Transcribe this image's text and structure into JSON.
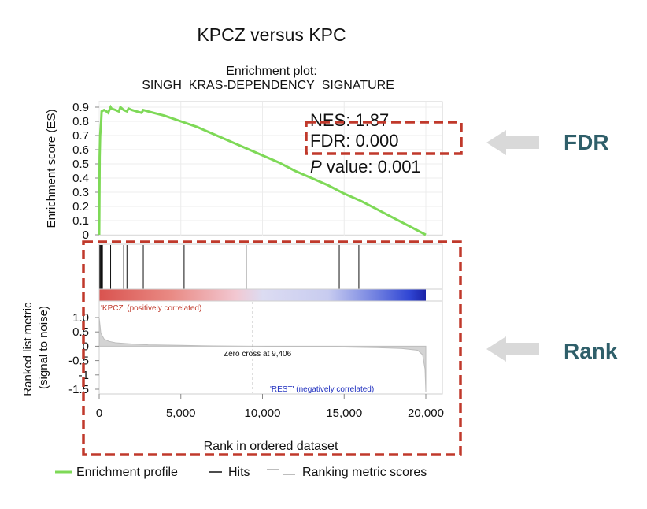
{
  "title": "KPCZ versus KPC",
  "subtitle_line1": "Enrichment plot:",
  "subtitle_line2": "SINGH_KRAS-DEPENDENCY_SIGNATURE_",
  "stats": {
    "nes": "NES: 1.87",
    "fdr": "FDR: 0.000",
    "p_letter": "P",
    "p_rest": " value: 0.001"
  },
  "callouts": {
    "fdr": "FDR",
    "rank": "Rank"
  },
  "legend": {
    "profile": "Enrichment profile",
    "hits": "Hits",
    "ranking": "Ranking metric scores"
  },
  "annotations": {
    "positive": "'KPCZ' (positively correlated)",
    "negative": "'REST' (negatively correlated)",
    "zero_cross": "Zero cross at 9,406"
  },
  "colors": {
    "es_line": "#7ed957",
    "highlight_box": "#c0392b",
    "callout_text": "#2f5f6a",
    "arrow": "#d9d9d9",
    "positive_text": "#c0392b",
    "negative_text": "#1f2fbf"
  },
  "chart_data": {
    "type": "line",
    "title": "Enrichment plot: SINGH_KRAS-DEPENDENCY_SIGNATURE_",
    "xlabel": "Rank in ordered dataset",
    "x_ticks": [
      0,
      5000,
      10000,
      15000,
      20000
    ],
    "x_tick_labels": [
      "0",
      "5,000",
      "10,000",
      "15,000",
      "20,000"
    ],
    "xlim": [
      0,
      20000
    ],
    "es_panel": {
      "ylabel": "Enrichment score (ES)",
      "ylim": [
        0,
        0.9
      ],
      "y_ticks": [
        0,
        0.1,
        0.2,
        0.3,
        0.4,
        0.5,
        0.6,
        0.7,
        0.8,
        0.9
      ],
      "y_tick_labels": [
        "0",
        "0.1",
        "0.2",
        "0.3",
        "0.4",
        "0.5",
        "0.6",
        "0.7",
        "0.8",
        "0.9"
      ],
      "series": [
        {
          "name": "Enrichment profile",
          "x": [
            0,
            30,
            60,
            120,
            150,
            300,
            450,
            550,
            700,
            750,
            1000,
            1200,
            1300,
            1500,
            1700,
            1800,
            2000,
            2300,
            2600,
            2700,
            3000,
            4000,
            5000,
            6000,
            7000,
            8000,
            9000,
            10000,
            11000,
            12000,
            13000,
            14000,
            15000,
            16000,
            17000,
            18000,
            19000,
            20000
          ],
          "y": [
            0.0,
            0.55,
            0.7,
            0.8,
            0.87,
            0.88,
            0.87,
            0.86,
            0.9,
            0.89,
            0.88,
            0.87,
            0.9,
            0.88,
            0.87,
            0.89,
            0.88,
            0.87,
            0.86,
            0.88,
            0.87,
            0.84,
            0.8,
            0.76,
            0.71,
            0.66,
            0.61,
            0.56,
            0.51,
            0.45,
            0.4,
            0.35,
            0.29,
            0.24,
            0.18,
            0.12,
            0.06,
            0.0
          ]
        }
      ],
      "grid": true
    },
    "hits": [
      40,
      80,
      120,
      160,
      200,
      700,
      1500,
      1700,
      2700,
      5200,
      9000,
      14700,
      15900
    ],
    "rank_panel": {
      "ylabel": "Ranked list metric (signal to noise)",
      "y_tick_labels": [
        "1.0",
        "0.5",
        "0",
        "-0.5",
        "-1",
        "-1.5"
      ],
      "y_ticks": [
        1.0,
        0.5,
        0,
        -0.5,
        -1,
        -1.5
      ],
      "ylim": [
        -1.6,
        1.1
      ],
      "zero_cross": 9406,
      "series": [
        {
          "name": "Ranking metric scores",
          "x": [
            0,
            100,
            300,
            600,
            1000,
            2000,
            3000,
            5000,
            7000,
            9406,
            12000,
            15000,
            17000,
            18500,
            19500,
            19800,
            19950,
            20000
          ],
          "y": [
            1.0,
            0.45,
            0.25,
            0.17,
            0.12,
            0.08,
            0.05,
            0.03,
            0.01,
            0.0,
            -0.01,
            -0.03,
            -0.05,
            -0.08,
            -0.14,
            -0.3,
            -0.8,
            -1.6
          ]
        }
      ]
    }
  }
}
